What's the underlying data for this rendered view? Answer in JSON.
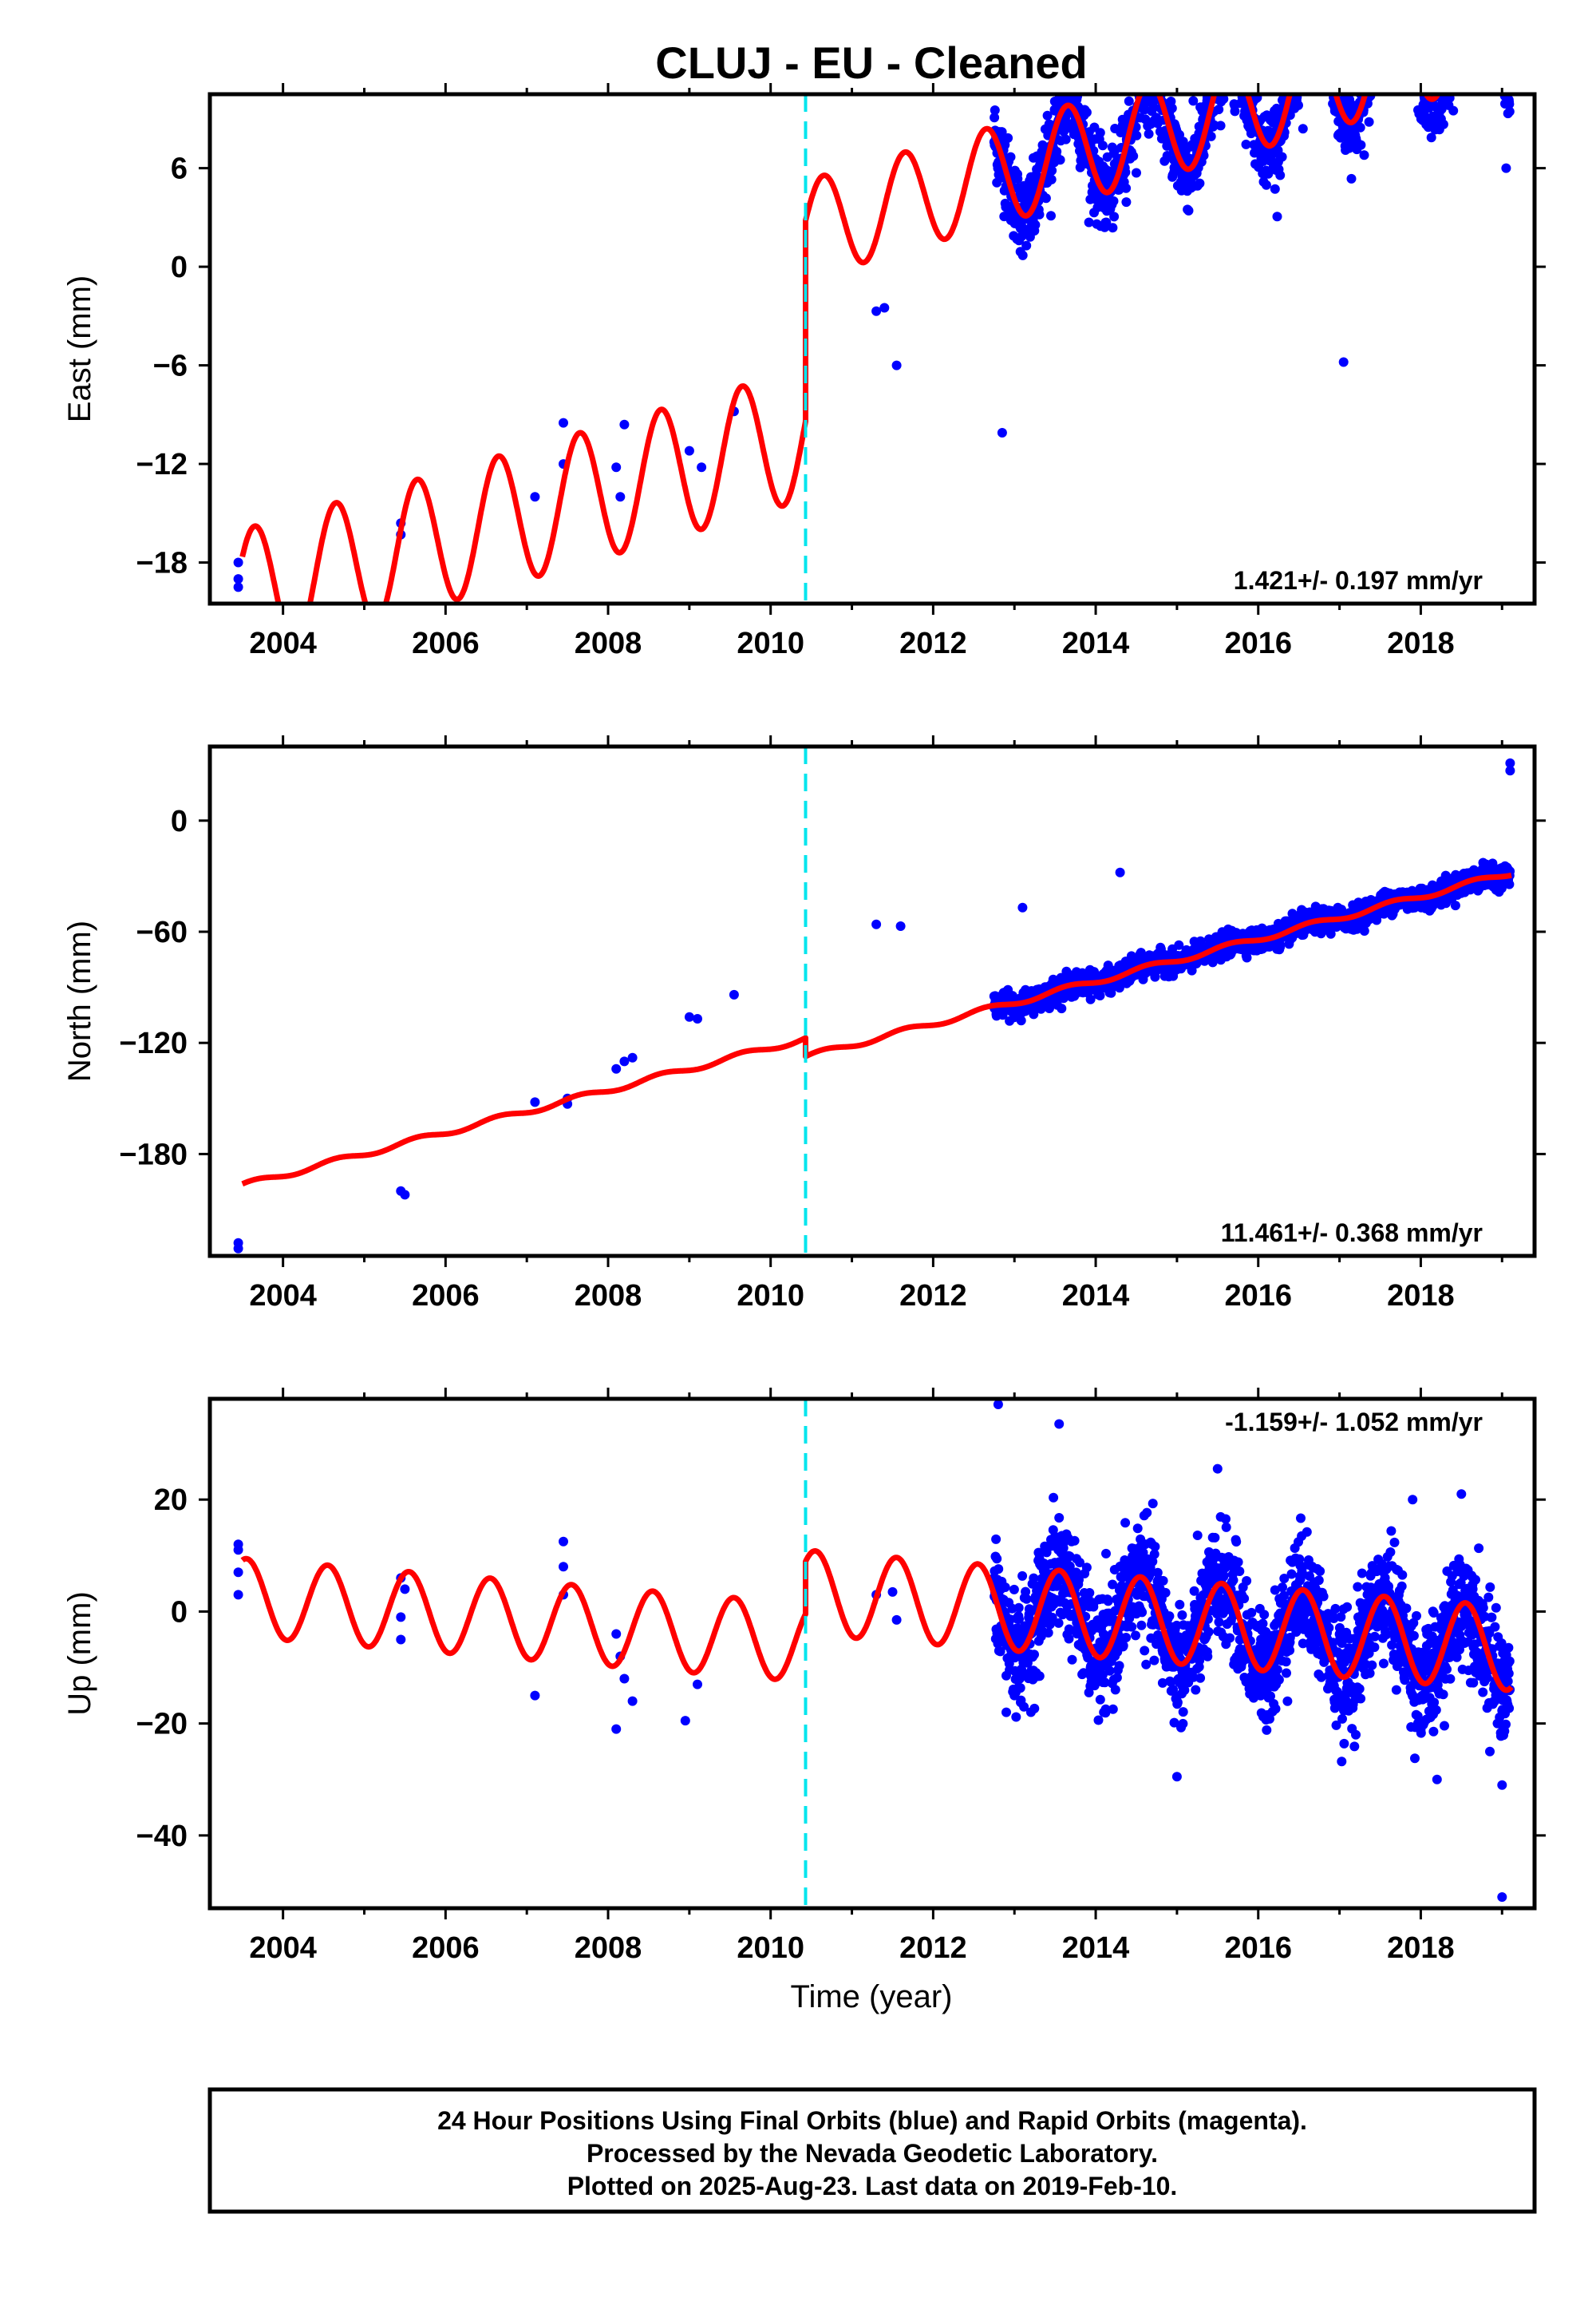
{
  "title": "CLUJ  - EU - Cleaned",
  "xlabel": "Time (year)",
  "footer": {
    "line1": "24 Hour Positions Using Final Orbits (blue) and Rapid Orbits (magenta).",
    "line2": "Processed by the Nevada Geodetic Laboratory.",
    "line3": "Plotted on 2025-Aug-23. Last data on 2019-Feb-10."
  },
  "colors": {
    "data": "#0000ff",
    "model": "#ff0000",
    "offset_line": "#00e5ee",
    "frame": "#000000"
  },
  "chart_data": [
    {
      "type": "scatter",
      "panel": "east",
      "ylabel": "East (mm)",
      "rate_text": "1.421+/- 0.197 mm/yr",
      "xlim": [
        2003.1,
        2019.4
      ],
      "ylim": [
        -20.5,
        10.5
      ],
      "xticks": [
        2004,
        2006,
        2008,
        2010,
        2012,
        2014,
        2016,
        2018
      ],
      "yticks": [
        -18,
        -12,
        -6,
        0,
        6
      ],
      "offset_epoch": 2010.43,
      "model": {
        "pre": {
          "t0": 2003.5,
          "a": -20.0,
          "rate": 1.42,
          "amp": 4.0,
          "phase": 2003.4
        },
        "post": {
          "a": -7.6,
          "rate": 1.42,
          "amp": 3.0,
          "phase": 2003.4
        }
      },
      "points_sparse": [
        [
          2003.45,
          -18.0
        ],
        [
          2003.45,
          -19.0
        ],
        [
          2003.45,
          -19.5
        ],
        [
          2005.45,
          -15.6
        ],
        [
          2005.45,
          -16.3
        ],
        [
          2007.1,
          -14.0
        ],
        [
          2007.45,
          -9.5
        ],
        [
          2007.45,
          -12.0
        ],
        [
          2008.1,
          -12.2
        ],
        [
          2008.15,
          -14.0
        ],
        [
          2008.2,
          -9.6
        ],
        [
          2009.0,
          -11.2
        ],
        [
          2009.15,
          -12.2
        ],
        [
          2009.55,
          -8.8
        ],
        [
          2011.3,
          -2.7
        ],
        [
          2011.4,
          -2.5
        ],
        [
          2011.55,
          -6.0
        ]
      ],
      "points_dense": {
        "from": 2012.75,
        "to": 2019.1,
        "per_year": 300,
        "scatter": 1.2
      },
      "dense_outliers": [
        [
          2012.85,
          -10.1
        ],
        [
          2013.45,
          3.1
        ],
        [
          2016.55,
          8.4
        ],
        [
          2017.05,
          -5.8
        ],
        [
          2018.4,
          9.5
        ],
        [
          2019.05,
          6.0
        ]
      ]
    },
    {
      "type": "scatter",
      "panel": "north",
      "ylabel": "North (mm)",
      "rate_text": "11.461+/- 0.368 mm/yr",
      "xlim": [
        2003.1,
        2019.4
      ],
      "ylim": [
        -235,
        40
      ],
      "xticks": [
        2004,
        2006,
        2008,
        2010,
        2012,
        2014,
        2016,
        2018
      ],
      "yticks": [
        -180,
        -120,
        -60,
        0
      ],
      "offset_epoch": 2010.43,
      "model": {
        "pre": {
          "t0": 2003.5,
          "a": -197.0,
          "rate": 11.46,
          "amp": 1.5,
          "phase": 2003.4
        },
        "post": {
          "a": -207.0,
          "rate": 11.46,
          "amp": 1.5,
          "phase": 2003.4
        }
      },
      "points_sparse": [
        [
          2003.45,
          -228
        ],
        [
          2003.45,
          -231
        ],
        [
          2005.45,
          -200
        ],
        [
          2005.5,
          -202
        ],
        [
          2007.1,
          -152
        ],
        [
          2007.5,
          -153
        ],
        [
          2007.5,
          -150
        ],
        [
          2008.1,
          -134
        ],
        [
          2008.2,
          -130
        ],
        [
          2008.3,
          -128
        ],
        [
          2009.0,
          -106
        ],
        [
          2009.1,
          -107
        ],
        [
          2009.55,
          -94
        ],
        [
          2011.3,
          -56
        ],
        [
          2011.6,
          -57
        ]
      ],
      "points_dense": {
        "from": 2012.75,
        "to": 2019.1,
        "per_year": 300,
        "scatter": 3.0
      },
      "dense_outliers": [
        [
          2013.1,
          -47
        ],
        [
          2014.3,
          -28
        ],
        [
          2019.1,
          27
        ],
        [
          2019.1,
          31
        ]
      ]
    },
    {
      "type": "scatter",
      "panel": "up",
      "ylabel": "Up (mm)",
      "rate_text": "-1.159+/- 1.052 mm/yr",
      "xlim": [
        2003.1,
        2019.4
      ],
      "ylim": [
        -53,
        38
      ],
      "xticks": [
        2004,
        2006,
        2008,
        2010,
        2012,
        2014,
        2016,
        2018
      ],
      "yticks": [
        -40,
        -20,
        0,
        20
      ],
      "offset_epoch": 2010.43,
      "model": {
        "pre": {
          "t0": 2003.5,
          "a": 2.5,
          "rate": -1.16,
          "amp": 7.0,
          "phase": 2003.3
        },
        "post": {
          "a": 11.5,
          "rate": -1.16,
          "amp": 7.5,
          "phase": 2003.3
        }
      },
      "points_sparse": [
        [
          2003.45,
          11.0
        ],
        [
          2003.45,
          7.0
        ],
        [
          2003.45,
          3.0
        ],
        [
          2003.45,
          12.0
        ],
        [
          2005.45,
          6.0
        ],
        [
          2005.45,
          -1.0
        ],
        [
          2005.45,
          -5.0
        ],
        [
          2005.5,
          4.0
        ],
        [
          2007.1,
          -15.0
        ],
        [
          2007.45,
          12.5
        ],
        [
          2007.45,
          3.0
        ],
        [
          2007.45,
          8.0
        ],
        [
          2008.1,
          -21.0
        ],
        [
          2008.15,
          -8.0
        ],
        [
          2008.2,
          -12.0
        ],
        [
          2008.3,
          -16.0
        ],
        [
          2008.1,
          -4.0
        ],
        [
          2008.95,
          -19.5
        ],
        [
          2009.1,
          -13.0
        ],
        [
          2011.3,
          3.0
        ],
        [
          2011.55,
          -1.5
        ],
        [
          2011.5,
          3.5
        ]
      ],
      "points_dense": {
        "from": 2012.75,
        "to": 2019.1,
        "per_year": 300,
        "scatter": 5.0
      },
      "dense_outliers": [
        [
          2012.8,
          37
        ],
        [
          2013.55,
          33.5
        ],
        [
          2012.9,
          -18
        ],
        [
          2013.0,
          -15
        ],
        [
          2014.1,
          -18
        ],
        [
          2015.0,
          -29.5
        ],
        [
          2015.5,
          25.5
        ],
        [
          2017.2,
          -22
        ],
        [
          2017.7,
          -14
        ],
        [
          2017.9,
          20
        ],
        [
          2018.2,
          -30
        ],
        [
          2018.5,
          21
        ],
        [
          2018.85,
          -25
        ],
        [
          2019.0,
          -31
        ],
        [
          2019.0,
          -51
        ]
      ]
    }
  ]
}
